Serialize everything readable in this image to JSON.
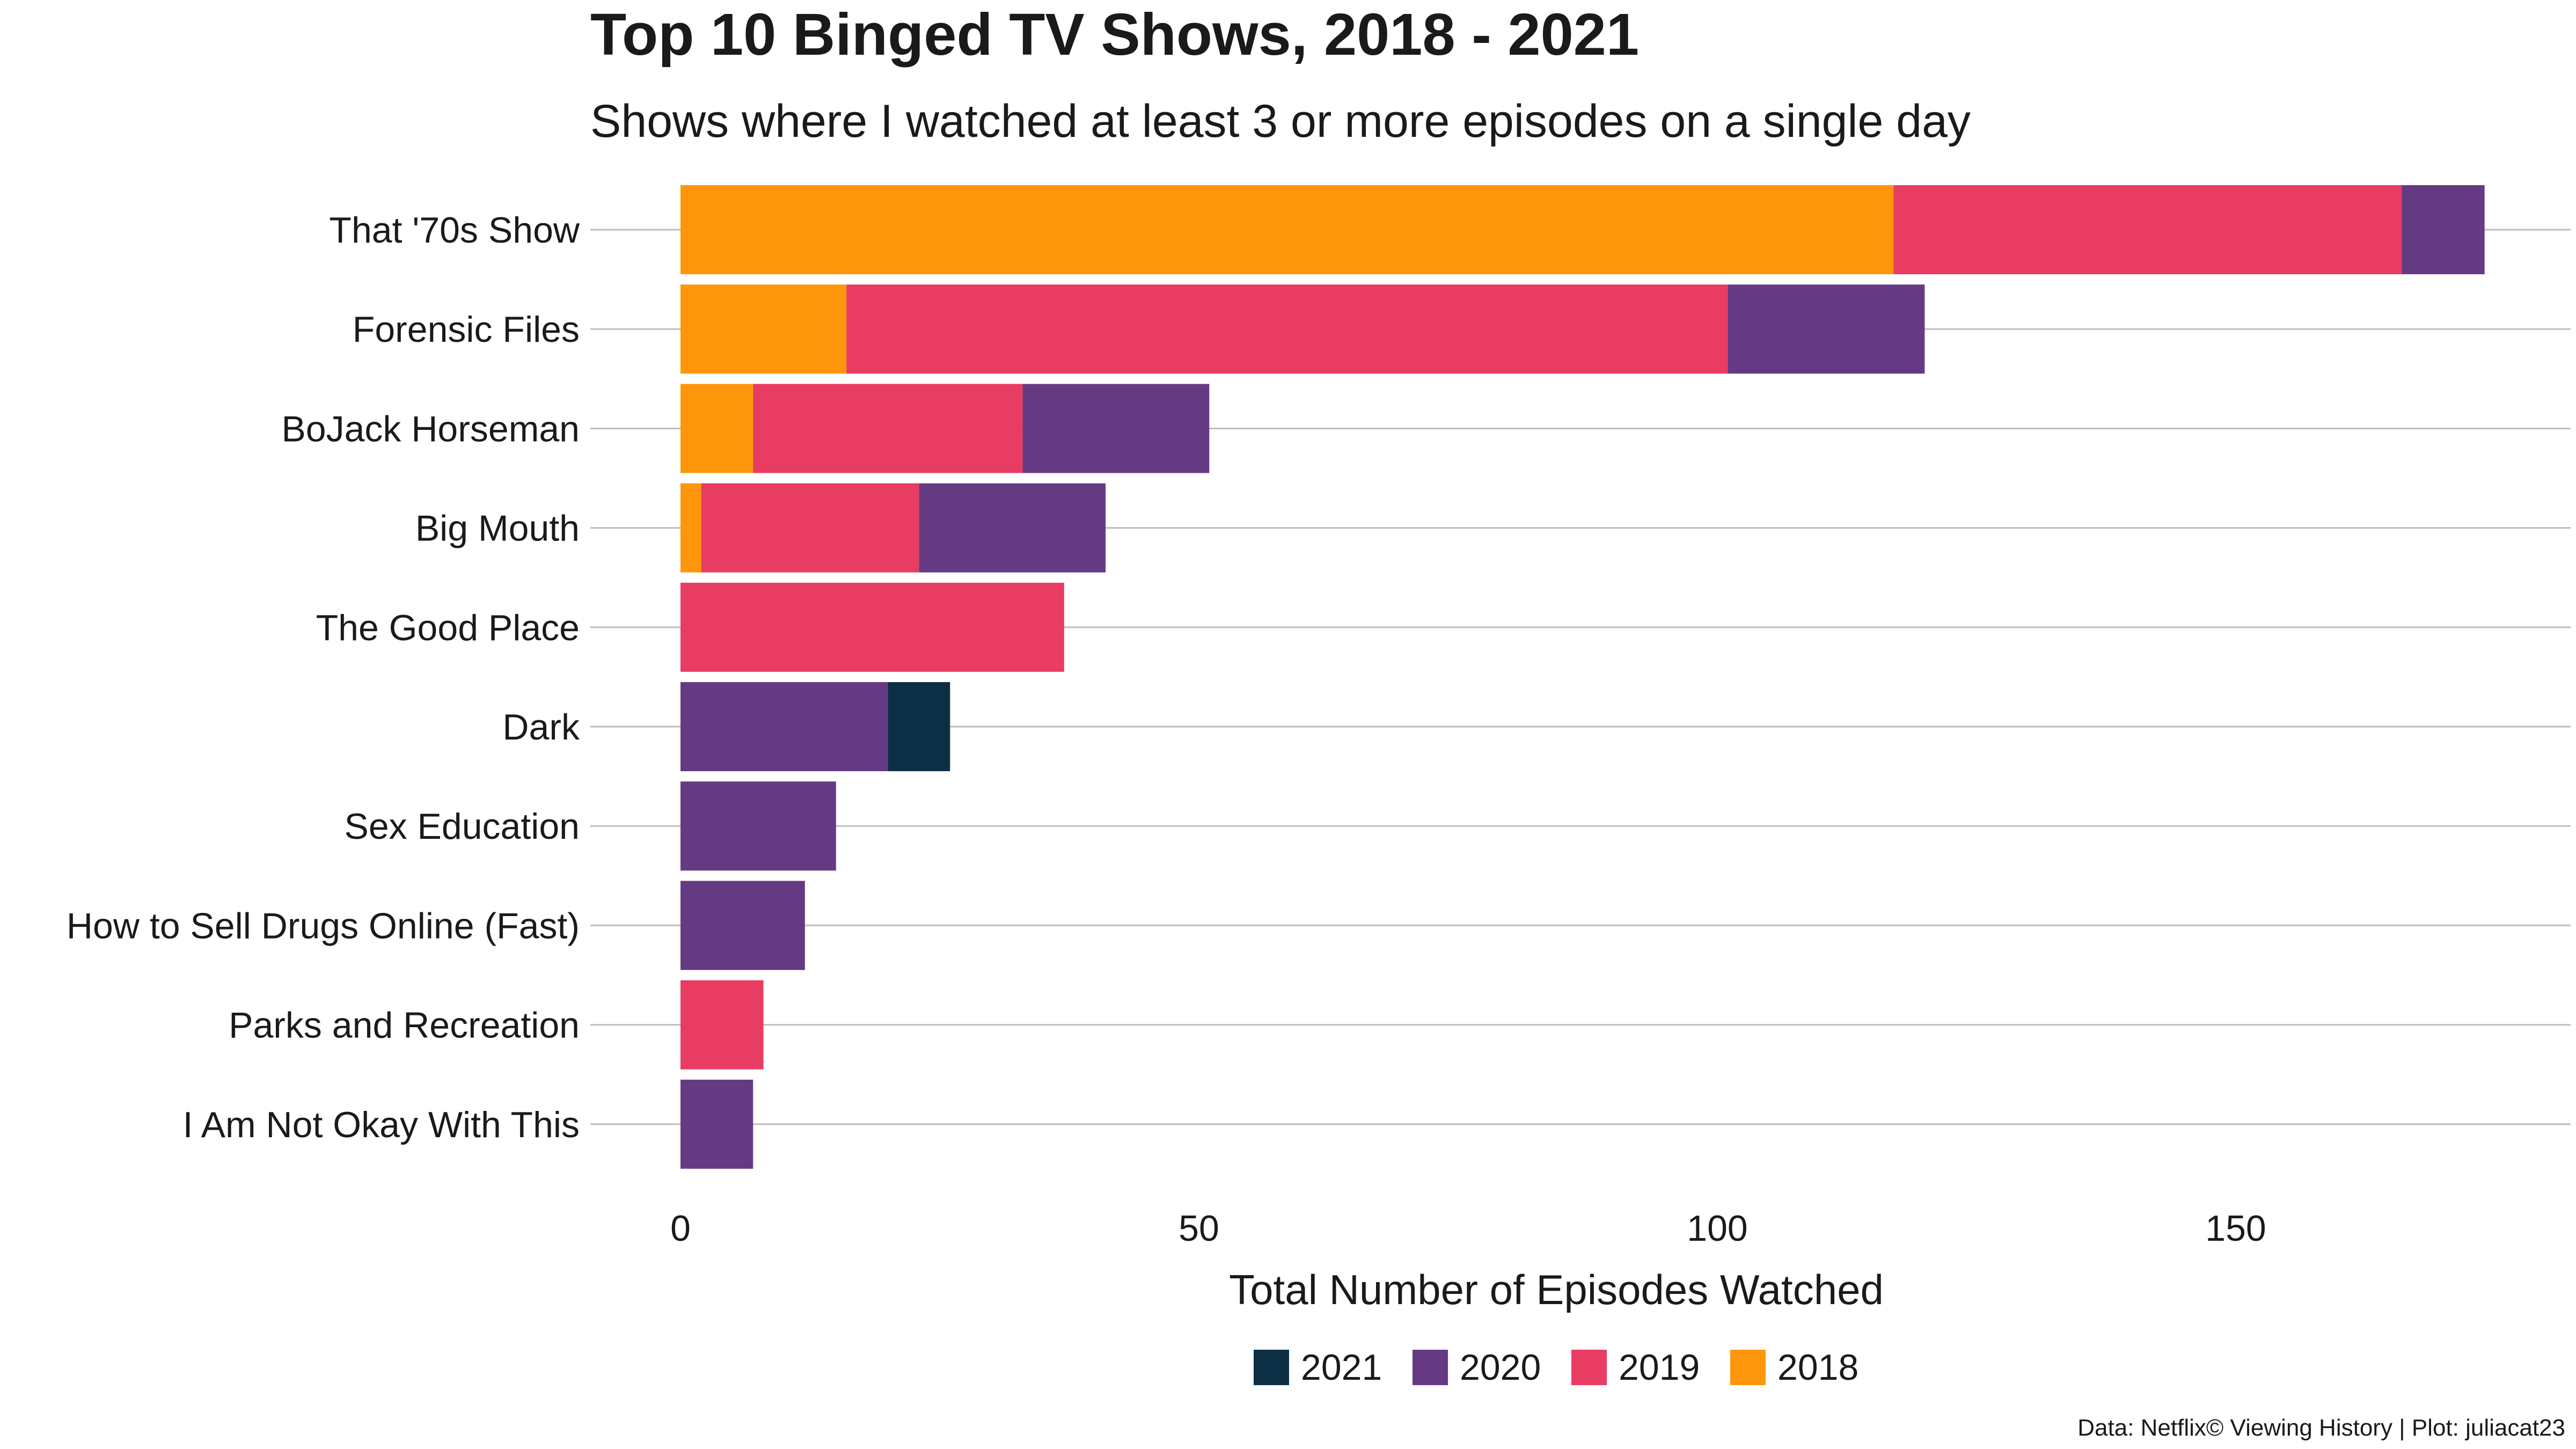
{
  "chart_data": {
    "type": "bar",
    "orientation": "horizontal",
    "stacked": true,
    "title": "Top 10 Binged TV Shows, 2018 - 2021",
    "subtitle": "Shows where I watched at least 3 or more episodes on a single day",
    "xlabel": "Total Number of Episodes Watched",
    "ylabel": "",
    "xlim": [
      0,
      182
    ],
    "x_ticks": [
      0,
      50,
      100,
      150
    ],
    "grid": "horizontal",
    "legend_position": "bottom",
    "caption": "Data: Netflix© Viewing History | Plot: juliacat23",
    "categories": [
      "That '70s Show",
      "Forensic Files",
      "BoJack Horseman",
      "Big Mouth",
      "The Good Place",
      "Dark",
      "Sex Education",
      "How to Sell Drugs Online (Fast)",
      "Parks and Recreation",
      "I Am Not Okay With This"
    ],
    "stack_order": [
      "2018",
      "2019",
      "2020",
      "2021"
    ],
    "series": [
      {
        "name": "2021",
        "color": "#0d2f46",
        "values": [
          0,
          0,
          0,
          0,
          0,
          6,
          0,
          0,
          0,
          0
        ]
      },
      {
        "name": "2020",
        "color": "#663a82",
        "values": [
          8,
          19,
          18,
          18,
          0,
          20,
          15,
          12,
          0,
          7
        ]
      },
      {
        "name": "2019",
        "color": "#e83c62",
        "values": [
          49,
          85,
          26,
          21,
          37,
          0,
          0,
          0,
          8,
          0
        ]
      },
      {
        "name": "2018",
        "color": "#fd960b",
        "values": [
          117,
          16,
          7,
          2,
          0,
          0,
          0,
          0,
          0,
          0
        ]
      }
    ]
  }
}
